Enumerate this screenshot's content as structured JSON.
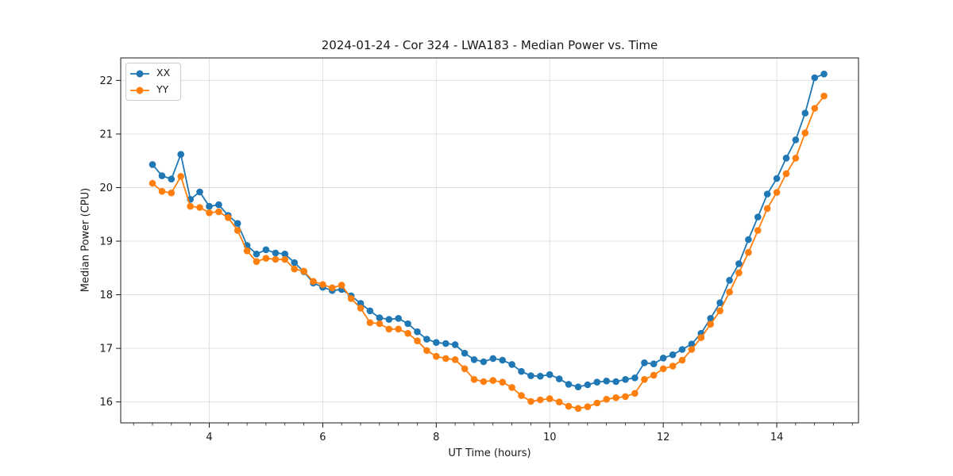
{
  "chart_data": {
    "type": "line",
    "title": "2024-01-24 - Cor 324 - LWA183 - Median Power vs. Time",
    "xlabel": "UT Time (hours)",
    "ylabel": "Median Power (CPU)",
    "xlim": [
      2.44,
      15.44
    ],
    "ylim": [
      15.61,
      22.42
    ],
    "x_ticks": [
      4,
      6,
      8,
      10,
      12,
      14
    ],
    "y_ticks": [
      16,
      17,
      18,
      19,
      20,
      21,
      22
    ],
    "x_minor_step": 0.3333,
    "grid": true,
    "legend_position": "upper left",
    "grid_color": "#e0e0e0",
    "axis_color": "#1a1a1a",
    "x": [
      3.0,
      3.167,
      3.333,
      3.5,
      3.667,
      3.833,
      4.0,
      4.167,
      4.333,
      4.5,
      4.667,
      4.833,
      5.0,
      5.167,
      5.333,
      5.5,
      5.667,
      5.833,
      6.0,
      6.167,
      6.333,
      6.5,
      6.667,
      6.833,
      7.0,
      7.167,
      7.333,
      7.5,
      7.667,
      7.833,
      8.0,
      8.167,
      8.333,
      8.5,
      8.667,
      8.833,
      9.0,
      9.167,
      9.333,
      9.5,
      9.667,
      9.833,
      10.0,
      10.167,
      10.333,
      10.5,
      10.667,
      10.833,
      11.0,
      11.167,
      11.333,
      11.5,
      11.667,
      11.833,
      12.0,
      12.167,
      12.333,
      12.5,
      12.667,
      12.833,
      13.0,
      13.167,
      13.333,
      13.5,
      13.667,
      13.833,
      14.0,
      14.167,
      14.333,
      14.5,
      14.667,
      14.833
    ],
    "series": [
      {
        "name": "XX",
        "color": "#1f77b4",
        "values": [
          20.43,
          20.22,
          20.16,
          20.62,
          19.78,
          19.92,
          19.65,
          19.68,
          19.48,
          19.33,
          18.92,
          18.76,
          18.84,
          18.78,
          18.76,
          18.6,
          18.43,
          18.22,
          18.14,
          18.08,
          18.1,
          17.98,
          17.84,
          17.7,
          17.57,
          17.54,
          17.56,
          17.46,
          17.31,
          17.17,
          17.11,
          17.09,
          17.07,
          16.91,
          16.79,
          16.75,
          16.81,
          16.78,
          16.7,
          16.57,
          16.49,
          16.48,
          16.51,
          16.43,
          16.33,
          16.28,
          16.32,
          16.37,
          16.39,
          16.38,
          16.42,
          16.45,
          16.73,
          16.71,
          16.82,
          16.88,
          16.98,
          17.08,
          17.28,
          17.56,
          17.85,
          18.27,
          18.58,
          19.03,
          19.45,
          19.88,
          20.17,
          20.55,
          20.89,
          21.39,
          22.05,
          22.12
        ]
      },
      {
        "name": "YY",
        "color": "#ff7f0e",
        "values": [
          20.08,
          19.93,
          19.9,
          20.21,
          19.65,
          19.63,
          19.53,
          19.55,
          19.44,
          19.2,
          18.82,
          18.62,
          18.68,
          18.66,
          18.66,
          18.48,
          18.44,
          18.25,
          18.19,
          18.13,
          18.18,
          17.93,
          17.75,
          17.48,
          17.46,
          17.36,
          17.36,
          17.28,
          17.14,
          16.96,
          16.85,
          16.81,
          16.79,
          16.62,
          16.42,
          16.38,
          16.4,
          16.37,
          16.27,
          16.12,
          16.01,
          16.04,
          16.06,
          16.0,
          15.92,
          15.88,
          15.91,
          15.98,
          16.05,
          16.08,
          16.1,
          16.16,
          16.42,
          16.5,
          16.62,
          16.67,
          16.78,
          16.98,
          17.2,
          17.45,
          17.7,
          18.05,
          18.41,
          18.79,
          19.2,
          19.61,
          19.91,
          20.26,
          20.55,
          21.02,
          21.48,
          21.71
        ]
      }
    ]
  }
}
